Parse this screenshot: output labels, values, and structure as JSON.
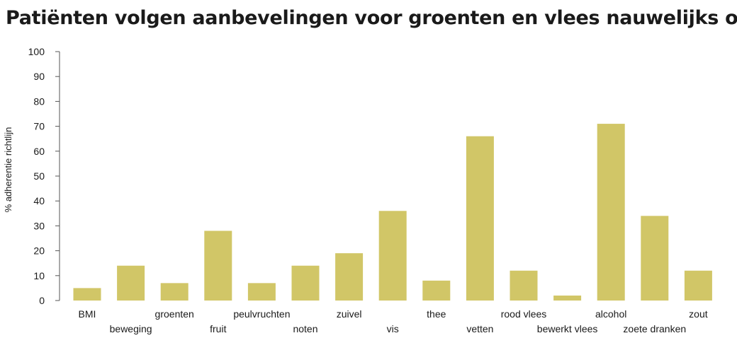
{
  "title": "Patiënten volgen aanbevelingen voor groenten en vlees nauwelijks op",
  "chart_data": {
    "type": "bar",
    "title": "Patiënten volgen aanbevelingen voor groenten en vlees nauwelijks op",
    "xlabel": "",
    "ylabel": "% adherentie richtlijn",
    "ylim": [
      0,
      100
    ],
    "yticks": [
      0,
      10,
      20,
      30,
      40,
      50,
      60,
      70,
      80,
      90,
      100
    ],
    "grid": false,
    "bar_color": "#d1c667",
    "categories": [
      "BMI",
      "beweging",
      "groenten",
      "fruit",
      "peulvruchten",
      "noten",
      "zuivel",
      "vis",
      "thee",
      "vetten",
      "rood vlees",
      "bewerkt vlees",
      "alcohol",
      "zoete dranken",
      "zout"
    ],
    "values": [
      5,
      14,
      7,
      28,
      7,
      14,
      19,
      36,
      8,
      66,
      12,
      2,
      71,
      34,
      12
    ]
  }
}
